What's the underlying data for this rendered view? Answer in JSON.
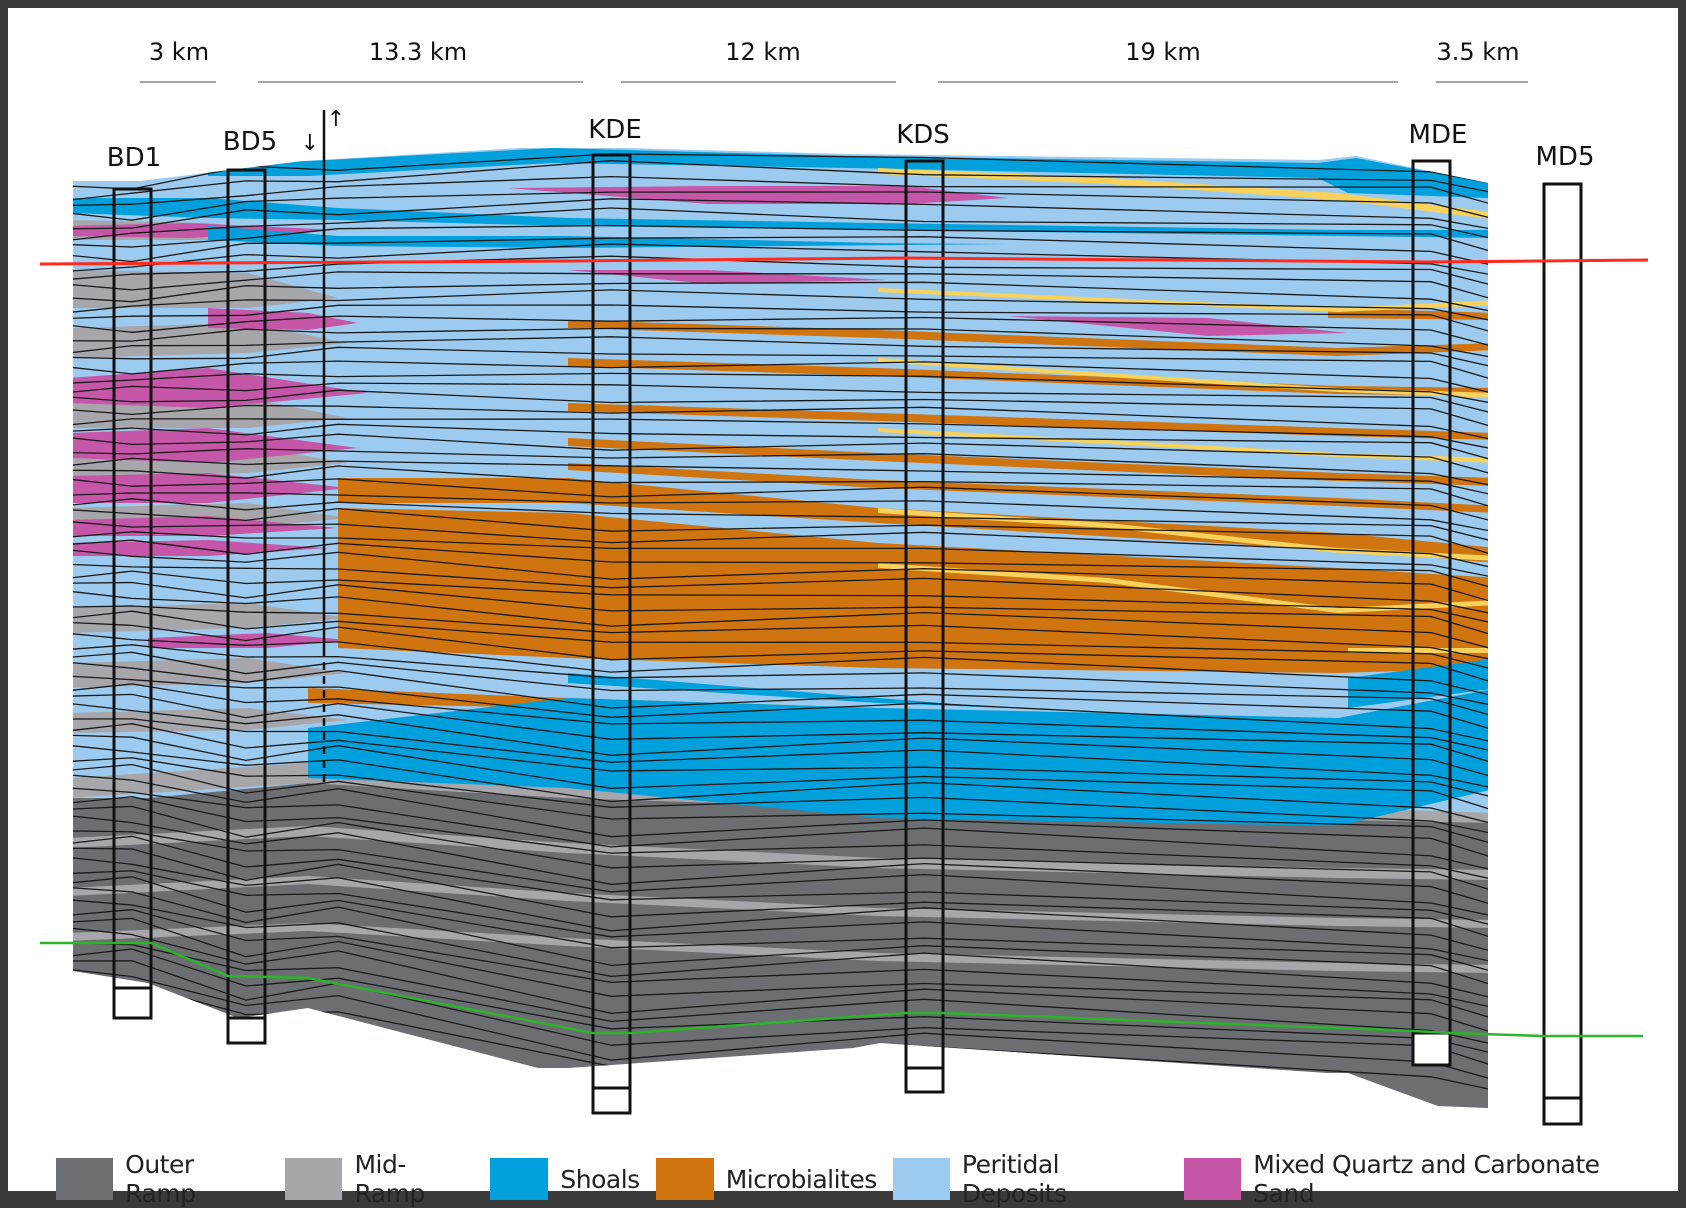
{
  "distances": [
    "3 km",
    "13.3 km",
    "12 km",
    "19 km",
    "3.5 km"
  ],
  "wells": [
    "BD1",
    "BD5",
    "KDE",
    "KDS",
    "MDE",
    "MD5"
  ],
  "fault_marks": {
    "down": "↓",
    "up": "↑"
  },
  "legend": [
    {
      "label": "Outer Ramp",
      "color": "#6d6e71"
    },
    {
      "label": "Mid-Ramp",
      "color": "#a7a7ab"
    },
    {
      "label": "Shoals",
      "color": "#00a0dc"
    },
    {
      "label": "Microbialites",
      "color": "#cf740f"
    },
    {
      "label": "Peritidal Deposits",
      "color": "#9ccbef"
    },
    {
      "label": "Mixed Quartz and Carbonate Sand",
      "color": "#c556a8"
    }
  ],
  "colors": {
    "thin_yellow": "#f8d25a",
    "upper_marker_line": "#ff2a1e",
    "lower_marker_line": "#2bb52b"
  }
}
